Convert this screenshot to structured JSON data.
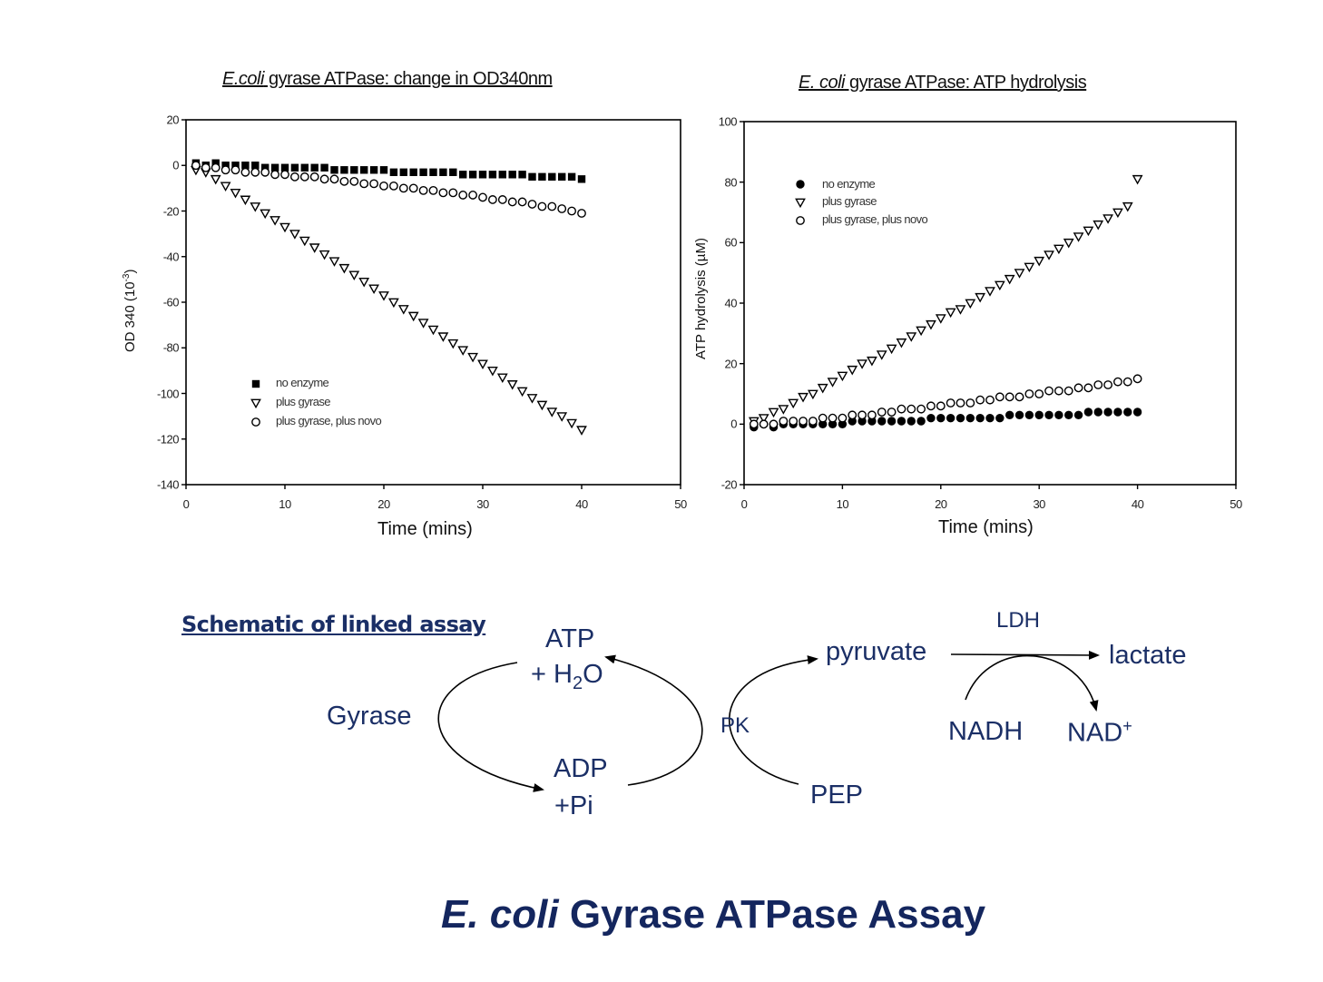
{
  "chart_data": [
    {
      "type": "scatter",
      "title_italic": "E.coli",
      "title_rest": " gyrase ATPase: change in OD340nm",
      "xlabel": "Time (mins)",
      "ylabel": "OD 340 (10⁻³)",
      "xlim": [
        0,
        50
      ],
      "ylim": [
        -140,
        20
      ],
      "xticks": [
        "0",
        "10",
        "20",
        "30",
        "40",
        "50"
      ],
      "yticks": [
        "20",
        "0",
        "-20",
        "-40",
        "-60",
        "-80",
        "-100",
        "-120",
        "-140"
      ],
      "grid": false,
      "legend_position": "lower-left inside",
      "x": [
        1,
        2,
        3,
        4,
        5,
        6,
        7,
        8,
        9,
        10,
        11,
        12,
        13,
        14,
        15,
        16,
        17,
        18,
        19,
        20,
        21,
        22,
        23,
        24,
        25,
        26,
        27,
        28,
        29,
        30,
        31,
        32,
        33,
        34,
        35,
        36,
        37,
        38,
        39,
        40
      ],
      "series": [
        {
          "name": "no enzyme",
          "marker": "filled-square",
          "values": [
            1,
            0,
            1,
            0,
            0,
            0,
            0,
            -1,
            -1,
            -1,
            -1,
            -1,
            -1,
            -1,
            -2,
            -2,
            -2,
            -2,
            -2,
            -2,
            -3,
            -3,
            -3,
            -3,
            -3,
            -3,
            -3,
            -4,
            -4,
            -4,
            -4,
            -4,
            -4,
            -4,
            -5,
            -5,
            -5,
            -5,
            -5,
            -6
          ]
        },
        {
          "name": "plus gyrase",
          "marker": "open-triangle-down",
          "values": [
            -2,
            -3,
            -6,
            -9,
            -12,
            -15,
            -18,
            -21,
            -24,
            -27,
            -30,
            -33,
            -36,
            -39,
            -42,
            -45,
            -48,
            -51,
            -54,
            -57,
            -60,
            -63,
            -66,
            -69,
            -72,
            -75,
            -78,
            -81,
            -84,
            -87,
            -90,
            -93,
            -96,
            -99,
            -102,
            -105,
            -108,
            -110,
            -113,
            -116
          ]
        },
        {
          "name": "plus gyrase, plus novo",
          "marker": "open-circle",
          "values": [
            0,
            -1,
            -1,
            -2,
            -2,
            -3,
            -3,
            -3,
            -4,
            -4,
            -5,
            -5,
            -5,
            -6,
            -6,
            -7,
            -7,
            -8,
            -8,
            -9,
            -9,
            -10,
            -10,
            -11,
            -11,
            -12,
            -12,
            -13,
            -13,
            -14,
            -15,
            -15,
            -16,
            -16,
            -17,
            -18,
            -18,
            -19,
            -20,
            -21
          ]
        }
      ]
    },
    {
      "type": "scatter",
      "title_italic": "E. coli",
      "title_rest": " gyrase ATPase: ATP hydrolysis",
      "xlabel": "Time (mins)",
      "ylabel": "ATP hydrolysis (µM)",
      "xlim": [
        0,
        50
      ],
      "ylim": [
        -20,
        100
      ],
      "xticks": [
        "0",
        "10",
        "20",
        "30",
        "40",
        "50"
      ],
      "yticks": [
        "100",
        "80",
        "60",
        "40",
        "20",
        "0",
        "-20"
      ],
      "grid": false,
      "legend_position": "upper-left inside",
      "x": [
        1,
        2,
        3,
        4,
        5,
        6,
        7,
        8,
        9,
        10,
        11,
        12,
        13,
        14,
        15,
        16,
        17,
        18,
        19,
        20,
        21,
        22,
        23,
        24,
        25,
        26,
        27,
        28,
        29,
        30,
        31,
        32,
        33,
        34,
        35,
        36,
        37,
        38,
        39,
        40
      ],
      "series": [
        {
          "name": "no enzyme",
          "marker": "filled-circle",
          "values": [
            -1,
            0,
            -1,
            0,
            0,
            0,
            0,
            0,
            0,
            0,
            1,
            1,
            1,
            1,
            1,
            1,
            1,
            1,
            2,
            2,
            2,
            2,
            2,
            2,
            2,
            2,
            3,
            3,
            3,
            3,
            3,
            3,
            3,
            3,
            4,
            4,
            4,
            4,
            4,
            4
          ]
        },
        {
          "name": "plus gyrase",
          "marker": "open-triangle-down",
          "values": [
            1,
            2,
            4,
            5,
            7,
            9,
            10,
            12,
            14,
            16,
            18,
            20,
            21,
            23,
            25,
            27,
            29,
            31,
            33,
            35,
            37,
            38,
            40,
            42,
            44,
            46,
            48,
            50,
            52,
            54,
            56,
            58,
            60,
            62,
            64,
            66,
            68,
            70,
            72,
            81
          ]
        },
        {
          "name": "plus gyrase, plus novo",
          "marker": "open-circle",
          "values": [
            0,
            0,
            0,
            1,
            1,
            1,
            1,
            2,
            2,
            2,
            3,
            3,
            3,
            4,
            4,
            5,
            5,
            5,
            6,
            6,
            7,
            7,
            7,
            8,
            8,
            9,
            9,
            9,
            10,
            10,
            11,
            11,
            11,
            12,
            12,
            13,
            13,
            14,
            14,
            15
          ]
        }
      ]
    }
  ],
  "charts": {
    "left": {
      "title_italic": "E.coli",
      "title_rest": " gyrase ATPase: change in OD340nm",
      "xlabel": "Time (mins)",
      "ylabel_main": "OD 340 (10",
      "ylabel_sup": "-3",
      "ylabel_end": ")",
      "xticks": [
        "0",
        "10",
        "20",
        "30",
        "40",
        "50"
      ],
      "yticks": [
        "20",
        "0",
        "-20",
        "-40",
        "-60",
        "-80",
        "-100",
        "-120",
        "-140"
      ],
      "legend": [
        "no enzyme",
        "plus gyrase",
        "plus gyrase, plus novo"
      ]
    },
    "right": {
      "title_italic": "E. coli",
      "title_rest": " gyrase ATPase: ATP hydrolysis",
      "xlabel": "Time (mins)",
      "ylabel": "ATP hydrolysis (µM)",
      "xticks": [
        "0",
        "10",
        "20",
        "30",
        "40",
        "50"
      ],
      "yticks": [
        "100",
        "80",
        "60",
        "40",
        "20",
        "0",
        "-20"
      ],
      "legend": [
        "no enzyme",
        "plus gyrase",
        "plus gyrase, plus novo"
      ]
    }
  },
  "schematic": {
    "title": "Schematic of linked assay",
    "atp": "ATP",
    "h2o_prefix": "+ H",
    "h2o_sub": "2",
    "h2o_suffix": "O",
    "gyrase": "Gyrase",
    "adp": "ADP",
    "pi": "+Pi",
    "pk": "PK",
    "pyruvate": "pyruvate",
    "pep": "PEP",
    "ldh": "LDH",
    "lactate": "lactate",
    "nadh": "NADH",
    "nad": "NAD",
    "nad_sup": "+"
  },
  "main_title": {
    "italic": "E. coli",
    "rest": " Gyrase ATPase Assay",
    "color": "#14265e"
  },
  "colors": {
    "schematic_text": "#1b2f66",
    "chart_ink": "#111111"
  }
}
